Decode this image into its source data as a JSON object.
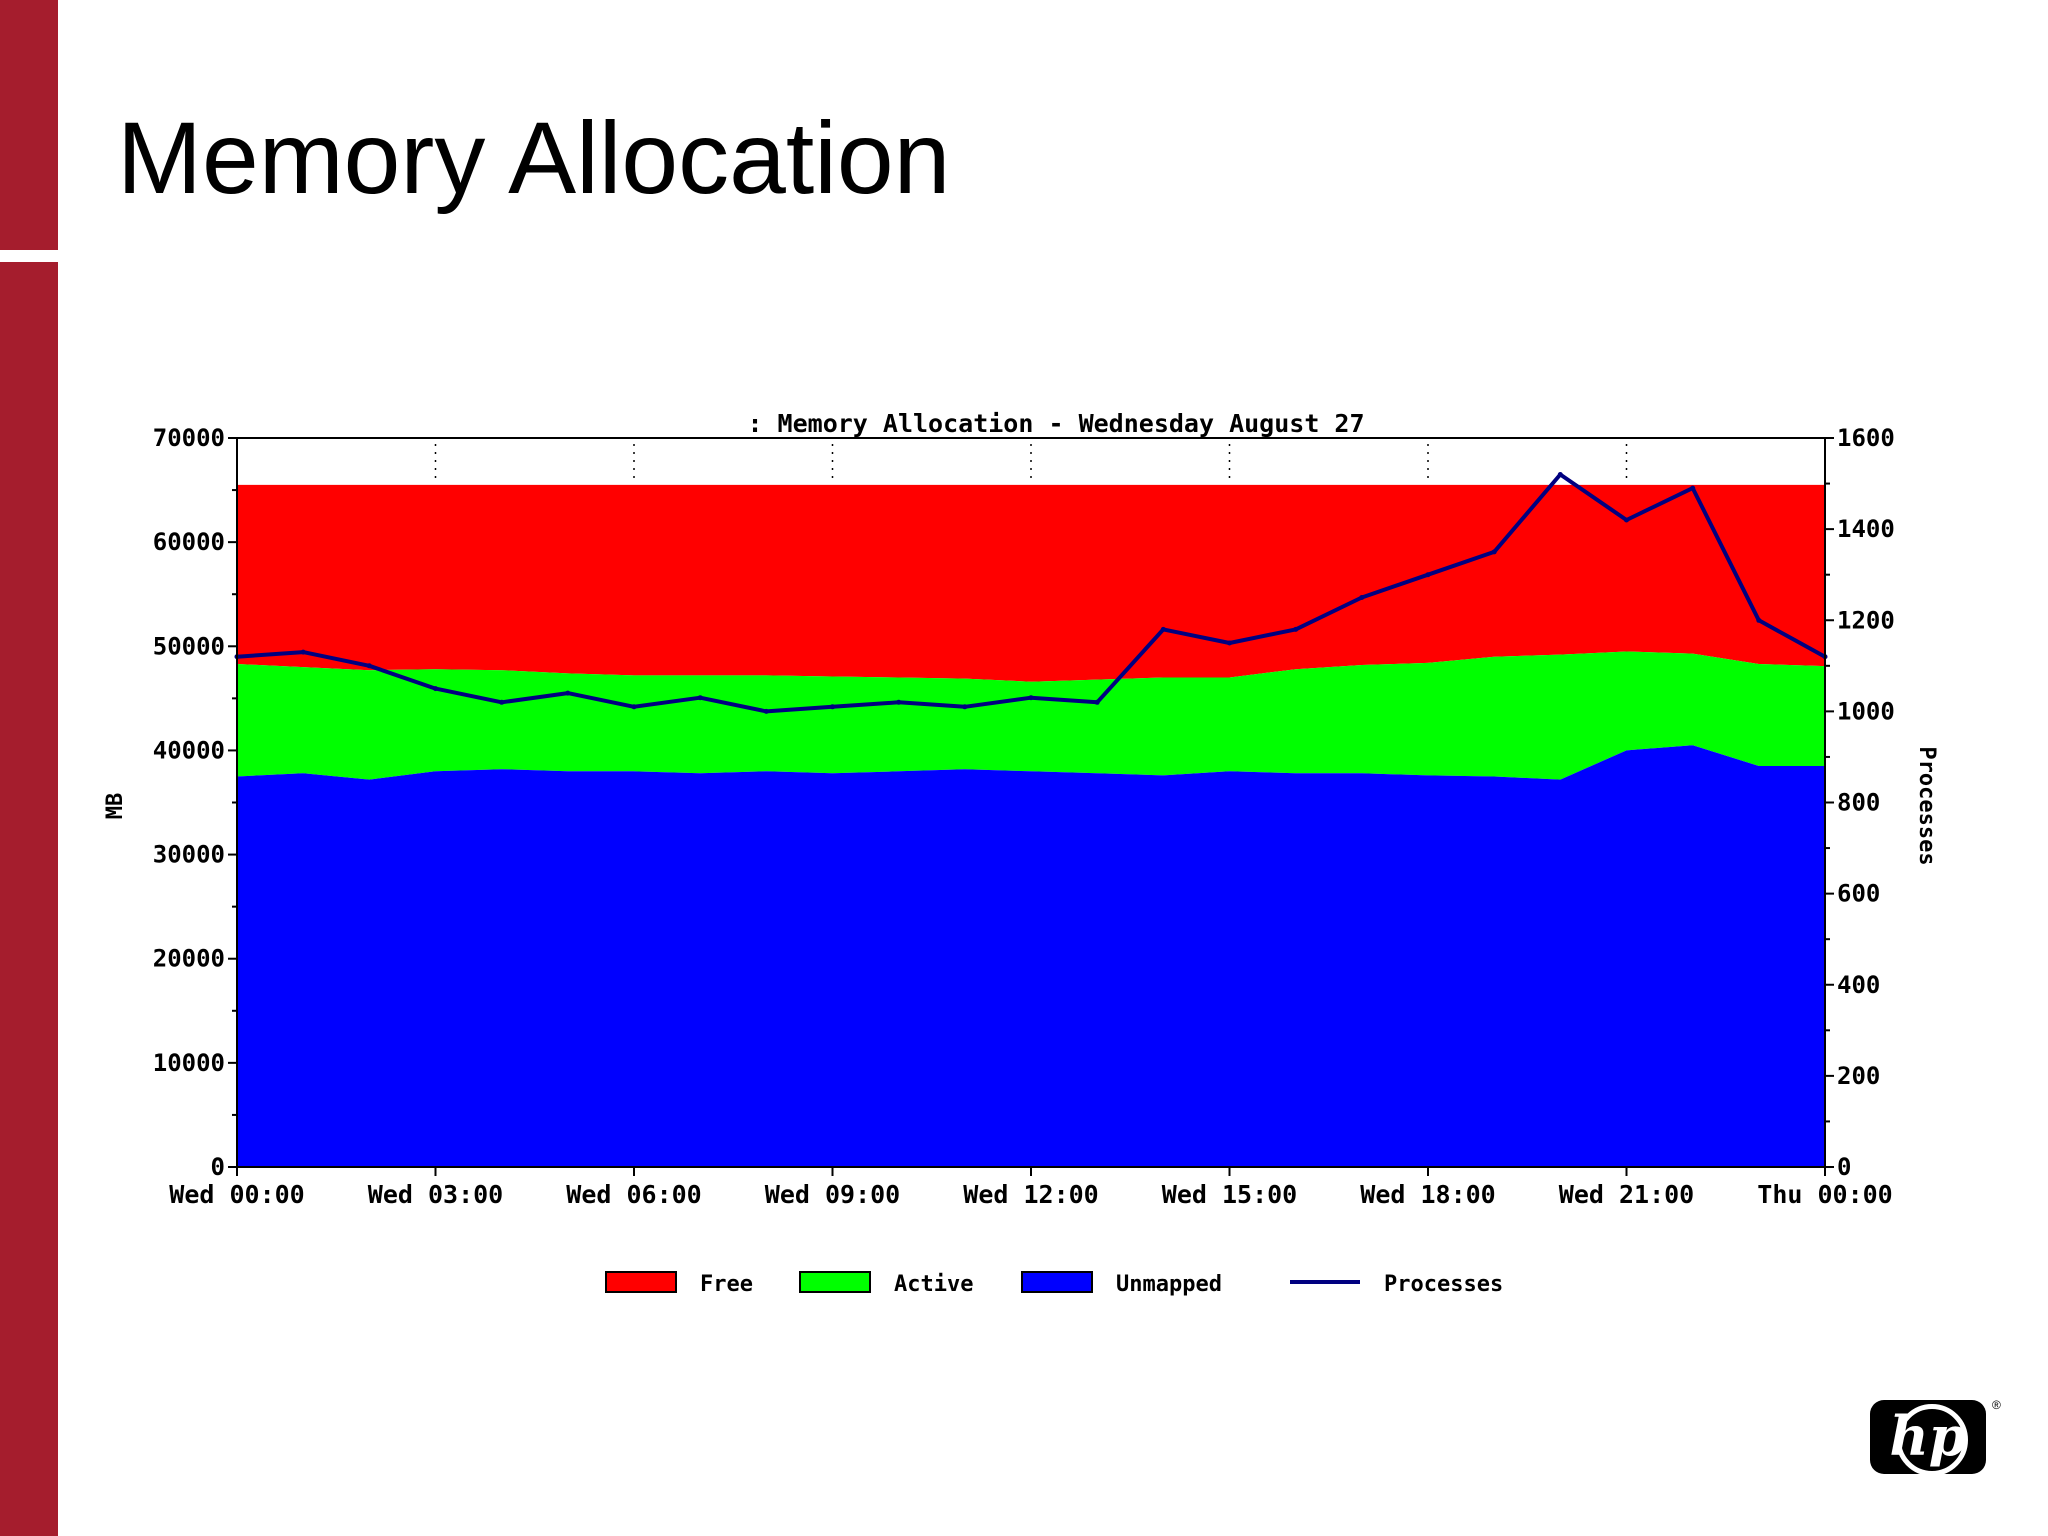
{
  "slide": {
    "title": "Memory Allocation",
    "logo_text": "hp",
    "registered_mark": "®"
  },
  "colors": {
    "sidebar": "#a51d2d",
    "free": "#ff0000",
    "active": "#00ff00",
    "unmapped": "#0000ff",
    "processes": "#000080"
  },
  "chart_data": {
    "type": "area",
    "title": ": Memory Allocation - Wednesday August 27",
    "ylabel": "MB",
    "y2label": "Processes",
    "ylim": [
      0,
      70000
    ],
    "y2lim": [
      0,
      1600
    ],
    "yticks": [
      "0",
      "10000",
      "20000",
      "30000",
      "40000",
      "50000",
      "60000",
      "70000"
    ],
    "y2ticks": [
      "0",
      "200",
      "400",
      "600",
      "800",
      "1000",
      "1200",
      "1400",
      "1600"
    ],
    "x_labels": [
      "Wed 00:00",
      "Wed 03:00",
      "Wed 06:00",
      "Wed 09:00",
      "Wed 12:00",
      "Wed 15:00",
      "Wed 18:00",
      "Wed 21:00",
      "Thu 00:00"
    ],
    "x_hours": [
      0,
      1,
      2,
      3,
      4,
      5,
      6,
      7,
      8,
      9,
      10,
      11,
      12,
      13,
      14,
      15,
      16,
      17,
      18,
      19,
      20,
      21,
      22,
      23,
      24
    ],
    "stacked": true,
    "legend": "bottom",
    "grid": false,
    "series": [
      {
        "name": "Unmapped",
        "axis": "left",
        "values": [
          37500,
          37800,
          37200,
          38000,
          38200,
          38000,
          38000,
          37800,
          38000,
          37800,
          38000,
          38200,
          38000,
          37800,
          37600,
          38000,
          37800,
          37800,
          37600,
          37500,
          37200,
          40000,
          40500,
          38500,
          38500
        ]
      },
      {
        "name": "Active",
        "axis": "left",
        "values": [
          10800,
          10200,
          10500,
          9800,
          9500,
          9400,
          9200,
          9400,
          9200,
          9300,
          9000,
          8700,
          8600,
          9000,
          9400,
          9000,
          10000,
          10400,
          10800,
          11500,
          12000,
          9500,
          8800,
          9800,
          9600
        ]
      },
      {
        "name": "Free",
        "axis": "left",
        "values": [
          17200,
          17500,
          17800,
          17700,
          17800,
          18100,
          18300,
          18300,
          18300,
          18400,
          18500,
          18600,
          18900,
          18700,
          18500,
          18500,
          17700,
          17300,
          17100,
          16500,
          16300,
          16000,
          16200,
          17200,
          17400
        ]
      },
      {
        "name": "Processes",
        "axis": "right",
        "values": [
          1120,
          1130,
          1100,
          1050,
          1020,
          1040,
          1010,
          1030,
          1000,
          1010,
          1020,
          1010,
          1030,
          1020,
          1180,
          1150,
          1180,
          1250,
          1300,
          1350,
          1520,
          1420,
          1490,
          1200,
          1120
        ]
      }
    ]
  }
}
